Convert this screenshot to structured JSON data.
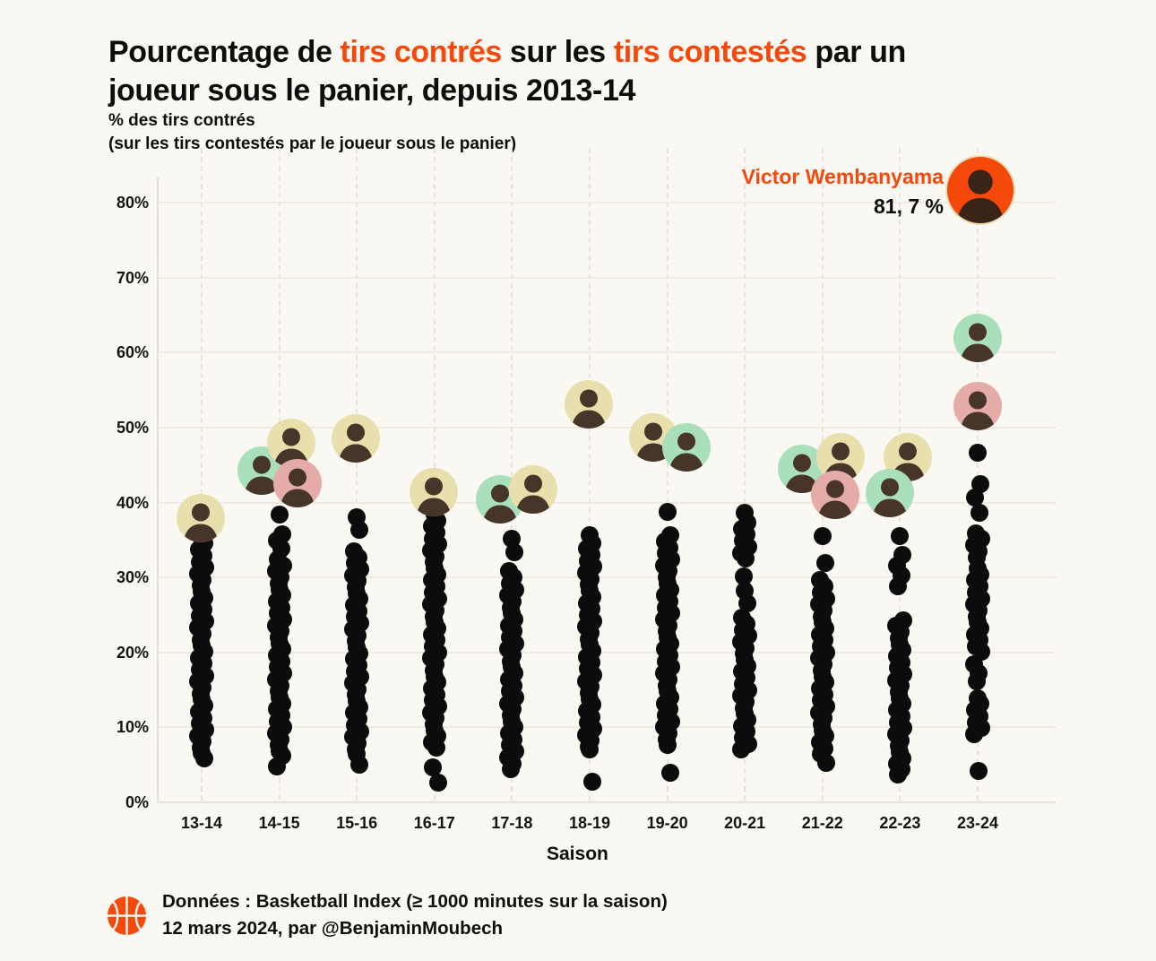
{
  "page": {
    "background": "#FAF8F2"
  },
  "header": {
    "title_lines": [
      [
        {
          "text": "Pourcentage de ",
          "accent": false
        },
        {
          "text": "tirs contrés",
          "accent": true
        },
        {
          "text": " sur les ",
          "accent": false
        },
        {
          "text": "tirs contestés",
          "accent": true
        },
        {
          "text": " par un",
          "accent": false
        }
      ],
      [
        {
          "text": "joueur sous le panier, depuis 2013-14",
          "accent": false
        }
      ]
    ]
  },
  "footer": {
    "source_line": "Données : Basketball Index (≥ 1000 minutes sur la saison)",
    "credit_line": "12 mars 2024, par @BenjaminMoubech",
    "icon": "basketball-icon"
  },
  "chart_data": {
    "type": "scatter",
    "title": "Pourcentage de tirs contrés sur les tirs contestés par un joueur sous le panier, depuis 2013-14",
    "title_accents": [
      "tirs contrés",
      "tirs contestés"
    ],
    "ylabel": [
      "% des tirs contrés",
      "(sur les tirs contestés par le joueur sous le panier)"
    ],
    "xlabel": "Saison",
    "y_unit": "%",
    "ylim": [
      0,
      85
    ],
    "y_tick_values": [
      0,
      10,
      20,
      30,
      40,
      50,
      60,
      70,
      80
    ],
    "y_tick_labels": [
      "0%",
      "10%",
      "20%",
      "30%",
      "40%",
      "50%",
      "60%",
      "70%",
      "80%"
    ],
    "grid": true,
    "categories": [
      "13-14",
      "14-15",
      "15-16",
      "16-17",
      "17-18",
      "18-19",
      "19-20",
      "20-21",
      "21-22",
      "22-23",
      "23-24"
    ],
    "series": [
      {
        "season": "13-14",
        "values": [
          35.3,
          34.5,
          33.7,
          32.9,
          32.1,
          31.3,
          30.5,
          29.7,
          28.9,
          28.1,
          27.3,
          26.5,
          25.7,
          24.9,
          24.1,
          23.3,
          22.5,
          21.7,
          20.9,
          20.1,
          19.3,
          18.5,
          17.7,
          16.9,
          16.1,
          15.3,
          14.5,
          13.7,
          12.9,
          12.1,
          11.3,
          10.5,
          9.7,
          8.9,
          8.1,
          7.3,
          6.6,
          5.9
        ]
      },
      {
        "season": "14-15",
        "values": [
          38.4,
          35.8,
          34.9,
          33.9,
          32.4,
          31.6,
          30.8,
          30.0,
          29.2,
          28.4,
          27.6,
          26.8,
          26.0,
          25.2,
          24.4,
          23.6,
          22.8,
          22.0,
          21.2,
          20.4,
          19.6,
          18.8,
          18.0,
          17.2,
          16.4,
          15.6,
          14.8,
          14.0,
          13.2,
          12.4,
          11.6,
          10.8,
          10.0,
          9.2,
          8.4,
          7.6,
          6.8,
          6.2,
          4.8
        ]
      },
      {
        "season": "15-16",
        "values": [
          38.0,
          36.4,
          33.5,
          32.7,
          31.9,
          31.1,
          30.3,
          29.5,
          28.7,
          27.9,
          27.1,
          26.3,
          25.5,
          24.7,
          23.9,
          23.1,
          22.3,
          21.5,
          20.7,
          19.9,
          19.1,
          18.3,
          17.5,
          16.7,
          15.9,
          15.1,
          14.3,
          13.5,
          12.7,
          11.9,
          11.1,
          10.3,
          9.5,
          8.7,
          7.9,
          7.1,
          6.5,
          5.0
        ]
      },
      {
        "season": "16-17",
        "values": [
          38.4,
          37.6,
          36.8,
          36.0,
          35.2,
          34.4,
          33.6,
          32.8,
          32.0,
          31.2,
          30.4,
          29.6,
          28.8,
          28.0,
          27.2,
          26.4,
          25.6,
          24.8,
          24.0,
          23.2,
          22.4,
          21.6,
          20.8,
          20.0,
          19.2,
          18.4,
          17.6,
          16.8,
          16.0,
          15.2,
          14.4,
          13.6,
          12.8,
          12.0,
          11.2,
          10.4,
          9.6,
          8.8,
          8.0,
          7.3,
          4.7,
          2.6
        ]
      },
      {
        "season": "17-18",
        "values": [
          35.2,
          33.4,
          30.8,
          30.0,
          29.2,
          28.4,
          27.6,
          26.8,
          26.0,
          25.2,
          24.4,
          23.6,
          22.8,
          22.0,
          21.2,
          20.4,
          19.6,
          18.8,
          18.0,
          17.2,
          16.4,
          15.6,
          14.8,
          14.0,
          13.2,
          12.4,
          11.6,
          10.8,
          10.0,
          9.2,
          8.4,
          7.6,
          6.8,
          6.0,
          5.2,
          4.4
        ]
      },
      {
        "season": "18-19",
        "values": [
          35.6,
          34.6,
          33.8,
          33.0,
          32.2,
          31.4,
          30.6,
          29.8,
          29.0,
          28.2,
          27.4,
          26.6,
          25.8,
          25.0,
          24.2,
          23.4,
          22.6,
          21.8,
          21.0,
          20.2,
          19.4,
          18.6,
          17.8,
          17.0,
          16.2,
          15.4,
          14.6,
          13.8,
          13.0,
          12.2,
          11.4,
          10.6,
          9.8,
          9.0,
          8.2,
          7.4,
          7.0,
          2.7
        ]
      },
      {
        "season": "19-20",
        "values": [
          38.8,
          35.6,
          34.8,
          34.0,
          33.2,
          32.4,
          31.6,
          30.8,
          30.0,
          29.2,
          28.4,
          27.6,
          26.8,
          26.0,
          25.2,
          24.4,
          23.6,
          22.8,
          22.0,
          21.2,
          20.4,
          19.6,
          18.8,
          18.0,
          17.2,
          16.4,
          15.6,
          14.8,
          14.0,
          13.2,
          12.4,
          11.6,
          10.8,
          10.0,
          9.2,
          8.4,
          7.6,
          3.9
        ]
      },
      {
        "season": "20-21",
        "values": [
          38.6,
          37.3,
          36.5,
          35.7,
          34.9,
          34.1,
          33.3,
          32.5,
          30.1,
          28.2,
          26.6,
          24.6,
          23.8,
          23.0,
          22.2,
          21.4,
          20.6,
          19.8,
          19.0,
          18.2,
          17.4,
          16.6,
          15.8,
          15.0,
          14.2,
          13.4,
          12.6,
          11.8,
          11.0,
          10.2,
          9.4,
          8.6,
          7.8,
          7.0
        ]
      },
      {
        "season": "21-22",
        "values": [
          35.5,
          31.9,
          29.6,
          28.8,
          28.0,
          27.2,
          26.4,
          25.6,
          24.8,
          24.0,
          23.2,
          22.4,
          21.6,
          20.8,
          20.0,
          19.2,
          18.4,
          17.6,
          16.8,
          16.0,
          15.2,
          14.4,
          13.6,
          12.8,
          12.0,
          11.2,
          10.4,
          9.6,
          8.8,
          8.0,
          7.2,
          6.4,
          5.3
        ]
      },
      {
        "season": "22-23",
        "values": [
          35.5,
          33.0,
          31.6,
          30.2,
          28.8,
          24.3,
          23.5,
          22.7,
          21.9,
          21.1,
          20.3,
          19.5,
          18.7,
          17.9,
          17.1,
          16.3,
          15.5,
          14.7,
          13.9,
          13.1,
          12.3,
          11.5,
          10.7,
          9.9,
          9.1,
          8.3,
          7.5,
          6.7,
          5.9,
          5.1,
          4.4,
          3.7
        ]
      },
      {
        "season": "23-24",
        "values": [
          46.6,
          42.4,
          40.6,
          38.6,
          35.9,
          35.1,
          34.3,
          33.5,
          32.7,
          31.2,
          30.4,
          29.6,
          28.8,
          28.0,
          27.2,
          26.4,
          25.6,
          24.8,
          24.0,
          23.2,
          22.4,
          21.6,
          20.8,
          20.1,
          18.4,
          17.2,
          16.2,
          13.9,
          13.1,
          12.3,
          11.5,
          10.7,
          9.9,
          9.1,
          4.2
        ]
      }
    ],
    "avatars": [
      {
        "season": "13-14",
        "value": 37.9,
        "color": "cream",
        "dx": -1
      },
      {
        "season": "14-15",
        "value": 44.2,
        "color": "green",
        "dx": -20
      },
      {
        "season": "14-15",
        "value": 47.9,
        "color": "cream",
        "dx": 13
      },
      {
        "season": "14-15",
        "value": 42.6,
        "color": "pink",
        "dx": 20
      },
      {
        "season": "15-16",
        "value": 48.5,
        "color": "cream",
        "dx": -1
      },
      {
        "season": "16-17",
        "value": 41.4,
        "color": "cream",
        "dx": -1
      },
      {
        "season": "17-18",
        "value": 40.4,
        "color": "green",
        "dx": -13
      },
      {
        "season": "17-18",
        "value": 41.7,
        "color": "cream",
        "dx": 24
      },
      {
        "season": "18-19",
        "value": 53.1,
        "color": "cream",
        "dx": -1
      },
      {
        "season": "19-20",
        "value": 48.7,
        "color": "cream",
        "dx": -16
      },
      {
        "season": "19-20",
        "value": 47.4,
        "color": "green",
        "dx": 21
      },
      {
        "season": "21-22",
        "value": 44.5,
        "color": "green",
        "dx": -23
      },
      {
        "season": "21-22",
        "value": 46.0,
        "color": "cream",
        "dx": 20
      },
      {
        "season": "21-22",
        "value": 41.0,
        "color": "pink",
        "dx": 14
      },
      {
        "season": "22-23",
        "value": 46.0,
        "color": "cream",
        "dx": 9
      },
      {
        "season": "22-23",
        "value": 41.2,
        "color": "green",
        "dx": -11
      },
      {
        "season": "23-24",
        "value": 61.9,
        "color": "green",
        "dx": 0
      },
      {
        "season": "23-24",
        "value": 52.8,
        "color": "pink",
        "dx": 0
      }
    ],
    "highlight": {
      "player": "Victor Wembanyama",
      "season": "23-24",
      "value": 81.7,
      "value_label": "81, 7 %",
      "color": "orange"
    },
    "colors": {
      "dot": "#0C0C0C",
      "accent": "#F4490B",
      "text": "#0D0D0D",
      "background": "#FAF8F2",
      "grid": "#EFEBE3",
      "avatar_cream": "#E8DFAC",
      "avatar_green": "#A9DFBA",
      "avatar_pink": "#E5ACA7",
      "avatar_orange": "#F4490B",
      "silhouette": "#47352A"
    }
  }
}
